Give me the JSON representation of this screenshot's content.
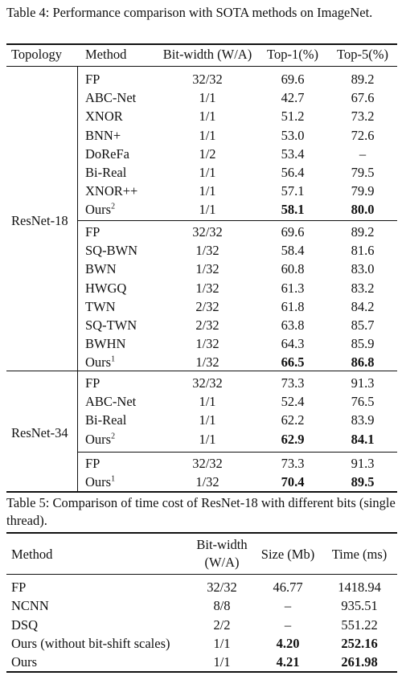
{
  "table4": {
    "caption": "Table 4: Performance comparison with SOTA methods on ImageNet.",
    "headers": [
      "Topology",
      "Method",
      "Bit-width (W/A)",
      "Top-1(%)",
      "Top-5(%)"
    ],
    "groups": [
      {
        "topology": "ResNet-18",
        "blocks": [
          [
            [
              "FP",
              "",
              "32/32",
              "69.6",
              "89.2"
            ],
            [
              "ABC-Net",
              "",
              "1/1",
              "42.7",
              "67.6"
            ],
            [
              "XNOR",
              "",
              "1/1",
              "51.2",
              "73.2"
            ],
            [
              "BNN+",
              "",
              "1/1",
              "53.0",
              "72.6"
            ],
            [
              "DoReFa",
              "",
              "1/2",
              "53.4",
              "–"
            ],
            [
              "Bi-Real",
              "",
              "1/1",
              "56.4",
              "79.5"
            ],
            [
              "XNOR++",
              "",
              "1/1",
              "57.1",
              "79.9"
            ],
            [
              "Ours",
              "2",
              "1/1",
              "58.1",
              "80.0"
            ]
          ],
          [
            [
              "FP",
              "",
              "32/32",
              "69.6",
              "89.2"
            ],
            [
              "SQ-BWN",
              "",
              "1/32",
              "58.4",
              "81.6"
            ],
            [
              "BWN",
              "",
              "1/32",
              "60.8",
              "83.0"
            ],
            [
              "HWGQ",
              "",
              "1/32",
              "61.3",
              "83.2"
            ],
            [
              "TWN",
              "",
              "2/32",
              "61.8",
              "84.2"
            ],
            [
              "SQ-TWN",
              "",
              "2/32",
              "63.8",
              "85.7"
            ],
            [
              "BWHN",
              "",
              "1/32",
              "64.3",
              "85.9"
            ],
            [
              "Ours",
              "1",
              "1/32",
              "66.5",
              "86.8"
            ]
          ]
        ]
      },
      {
        "topology": "ResNet-34",
        "blocks": [
          [
            [
              "FP",
              "",
              "32/32",
              "73.3",
              "91.3"
            ],
            [
              "ABC-Net",
              "",
              "1/1",
              "52.4",
              "76.5"
            ],
            [
              "Bi-Real",
              "",
              "1/1",
              "62.2",
              "83.9"
            ],
            [
              "Ours",
              "2",
              "1/1",
              "62.9",
              "84.1"
            ]
          ],
          [
            [
              "FP",
              "",
              "32/32",
              "73.3",
              "91.3"
            ],
            [
              "Ours",
              "1",
              "1/32",
              "70.4",
              "89.5"
            ]
          ]
        ]
      }
    ]
  },
  "table5": {
    "caption": "Table 5: Comparison of time cost of ResNet-18 with different bits (single thread).",
    "headers": {
      "method": "Method",
      "bitwidth_line1": "Bit-width",
      "bitwidth_line2": "(W/A)",
      "size": "Size (Mb)",
      "time": "Time (ms)"
    },
    "rows": [
      [
        "FP",
        "32/32",
        "46.77",
        "1418.94"
      ],
      [
        "NCNN",
        "8/8",
        "–",
        "935.51"
      ],
      [
        "DSQ",
        "2/2",
        "–",
        "551.22"
      ],
      [
        "Ours (without bit-shift scales)",
        "1/1",
        "4.20",
        "252.16"
      ],
      [
        "Ours",
        "1/1",
        "4.21",
        "261.98"
      ]
    ]
  }
}
